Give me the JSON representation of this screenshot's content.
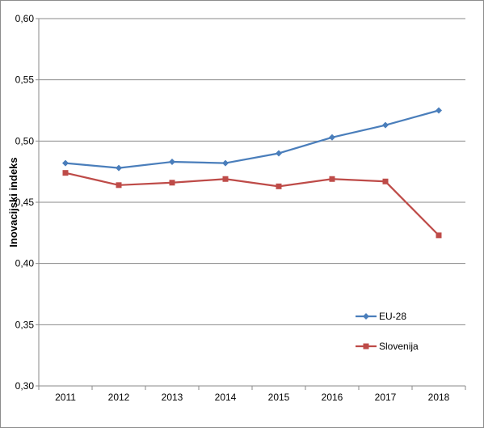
{
  "chart_data": {
    "type": "line",
    "title": "",
    "xlabel": "",
    "ylabel": "Inovacijski indeks",
    "ylim": [
      0.3,
      0.6
    ],
    "yticks": [
      "0,30",
      "0,35",
      "0,40",
      "0,45",
      "0,50",
      "0,55",
      "0,60"
    ],
    "ytick_values": [
      0.3,
      0.35,
      0.4,
      0.45,
      0.5,
      0.55,
      0.6
    ],
    "grid": true,
    "legend_position": "bottom-right",
    "categories": [
      "2011",
      "2012",
      "2013",
      "2014",
      "2015",
      "2016",
      "2017",
      "2018"
    ],
    "series": [
      {
        "name": "EU-28",
        "color": "#4a7ebb",
        "marker": "diamond",
        "values": [
          0.482,
          0.478,
          0.483,
          0.482,
          0.49,
          0.503,
          0.513,
          0.525
        ]
      },
      {
        "name": "Slovenija",
        "color": "#be4b48",
        "marker": "square",
        "values": [
          0.474,
          0.464,
          0.466,
          0.469,
          0.463,
          0.469,
          0.467,
          0.423
        ]
      }
    ]
  }
}
